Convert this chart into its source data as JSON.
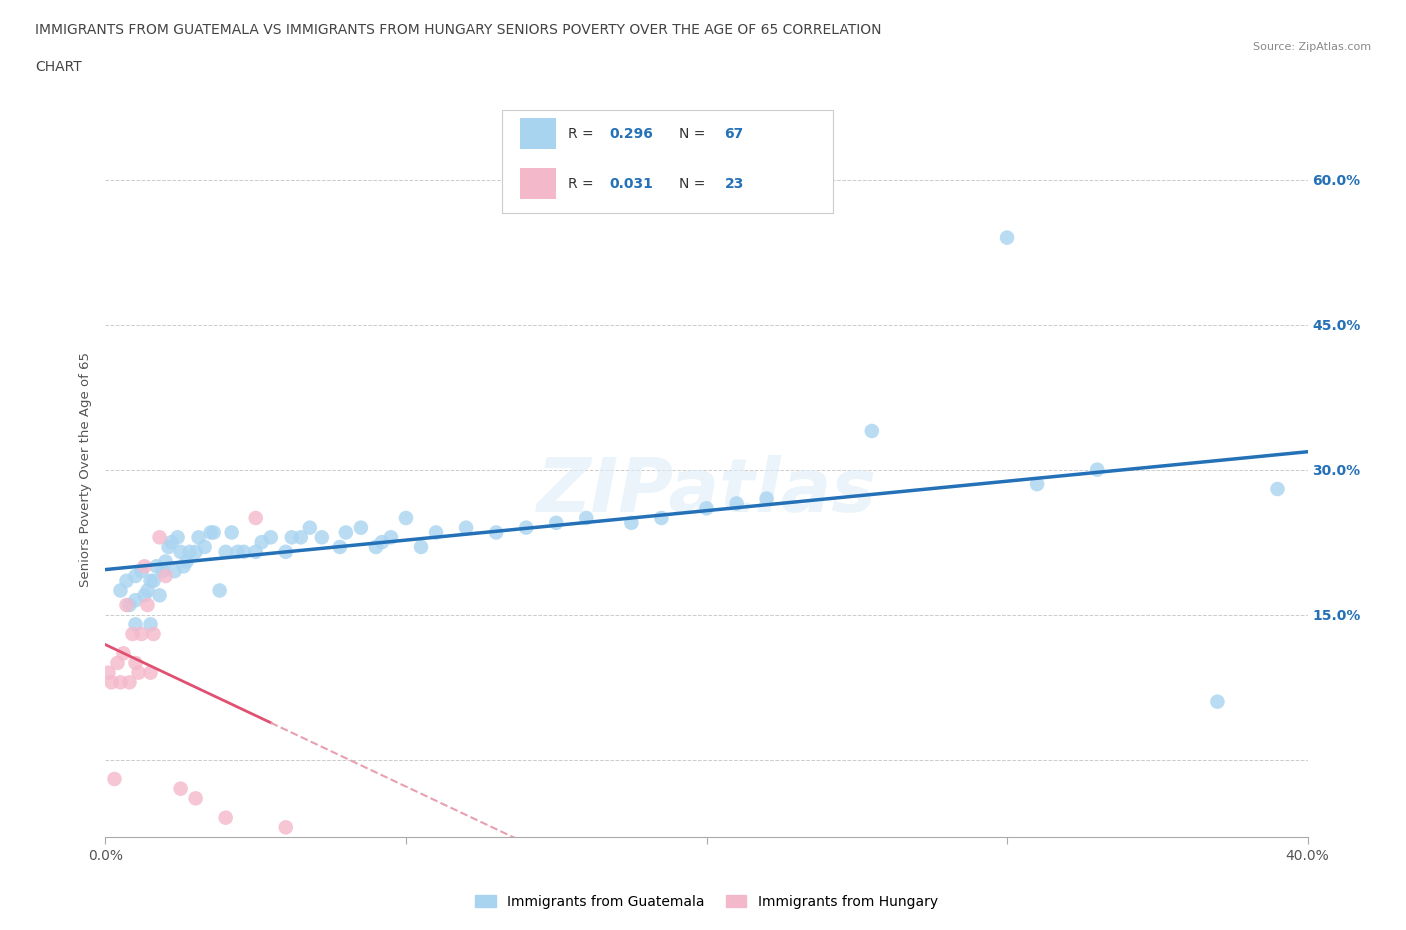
{
  "title_line1": "IMMIGRANTS FROM GUATEMALA VS IMMIGRANTS FROM HUNGARY SENIORS POVERTY OVER THE AGE OF 65 CORRELATION",
  "title_line2": "CHART",
  "source": "Source: ZipAtlas.com",
  "ylabel": "Seniors Poverty Over the Age of 65",
  "xlim": [
    0.0,
    0.4
  ],
  "ylim": [
    -0.08,
    0.68
  ],
  "yticks": [
    0.0,
    0.15,
    0.3,
    0.45,
    0.6
  ],
  "xticks": [
    0.0,
    0.1,
    0.2,
    0.3,
    0.4
  ],
  "xtick_labels": [
    "0.0%",
    "",
    "",
    "",
    "40.0%"
  ],
  "ytick_labels_right": [
    "",
    "15.0%",
    "30.0%",
    "45.0%",
    "60.0%"
  ],
  "guatemala_color": "#a8d4f0",
  "hungary_color": "#f4b8cb",
  "guatemala_line_color": "#2471b8",
  "hungary_line_solid_color": "#e05070",
  "hungary_line_dash_color": "#e8a0b0",
  "R_guatemala": 0.296,
  "N_guatemala": 67,
  "R_hungary": 0.031,
  "N_hungary": 23,
  "legend_guatemala": "Immigrants from Guatemala",
  "legend_hungary": "Immigrants from Hungary",
  "guatemala_x": [
    0.005,
    0.007,
    0.008,
    0.01,
    0.01,
    0.01,
    0.012,
    0.013,
    0.014,
    0.015,
    0.015,
    0.016,
    0.017,
    0.018,
    0.019,
    0.02,
    0.021,
    0.022,
    0.023,
    0.024,
    0.025,
    0.026,
    0.027,
    0.028,
    0.03,
    0.031,
    0.033,
    0.035,
    0.036,
    0.038,
    0.04,
    0.042,
    0.044,
    0.046,
    0.05,
    0.052,
    0.055,
    0.06,
    0.062,
    0.065,
    0.068,
    0.072,
    0.078,
    0.08,
    0.085,
    0.09,
    0.092,
    0.095,
    0.1,
    0.105,
    0.11,
    0.12,
    0.13,
    0.14,
    0.15,
    0.16,
    0.175,
    0.185,
    0.2,
    0.21,
    0.22,
    0.255,
    0.3,
    0.31,
    0.33,
    0.37,
    0.39
  ],
  "guatemala_y": [
    0.175,
    0.185,
    0.16,
    0.14,
    0.165,
    0.19,
    0.195,
    0.17,
    0.175,
    0.14,
    0.185,
    0.185,
    0.2,
    0.17,
    0.195,
    0.205,
    0.22,
    0.225,
    0.195,
    0.23,
    0.215,
    0.2,
    0.205,
    0.215,
    0.215,
    0.23,
    0.22,
    0.235,
    0.235,
    0.175,
    0.215,
    0.235,
    0.215,
    0.215,
    0.215,
    0.225,
    0.23,
    0.215,
    0.23,
    0.23,
    0.24,
    0.23,
    0.22,
    0.235,
    0.24,
    0.22,
    0.225,
    0.23,
    0.25,
    0.22,
    0.235,
    0.24,
    0.235,
    0.24,
    0.245,
    0.25,
    0.245,
    0.25,
    0.26,
    0.265,
    0.27,
    0.34,
    0.54,
    0.285,
    0.3,
    0.06,
    0.28
  ],
  "hungary_x": [
    0.001,
    0.002,
    0.003,
    0.004,
    0.005,
    0.006,
    0.007,
    0.008,
    0.009,
    0.01,
    0.011,
    0.012,
    0.013,
    0.014,
    0.015,
    0.016,
    0.018,
    0.02,
    0.025,
    0.03,
    0.04,
    0.05,
    0.06
  ],
  "hungary_y": [
    0.09,
    0.08,
    -0.02,
    0.1,
    0.08,
    0.11,
    0.16,
    0.08,
    0.13,
    0.1,
    0.09,
    0.13,
    0.2,
    0.16,
    0.09,
    0.13,
    0.23,
    0.19,
    -0.03,
    -0.04,
    -0.06,
    0.25,
    -0.07
  ]
}
